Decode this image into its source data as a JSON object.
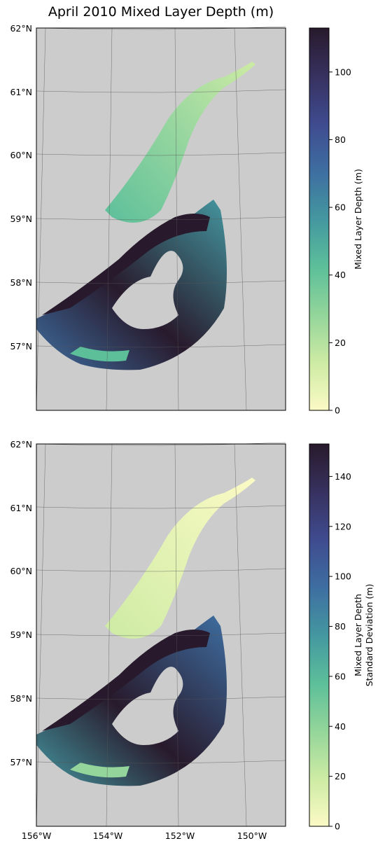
{
  "title": "April 2010 Mixed Layer Depth (m)",
  "latitude_labels": [
    "62°N",
    "61°N",
    "60°N",
    "59°N",
    "58°N",
    "57°N"
  ],
  "longitude_labels": [
    "156°W",
    "154°W",
    "152°W",
    "150°W"
  ],
  "panels": [
    {
      "name": "mean",
      "colorbar": {
        "label_lines": [
          "Mixed Layer Depth (m)"
        ],
        "ticks": [
          "0",
          "20",
          "40",
          "60",
          "80",
          "100"
        ],
        "tick_values": [
          0,
          20,
          40,
          60,
          80,
          100
        ],
        "vmin": 0,
        "vmax": 113
      }
    },
    {
      "name": "std",
      "colorbar": {
        "label_lines": [
          "Mixed Layer Depth",
          "Standard Deviation (m)"
        ],
        "ticks": [
          "0",
          "20",
          "40",
          "60",
          "80",
          "100",
          "120",
          "140"
        ],
        "tick_values": [
          0,
          20,
          40,
          60,
          80,
          100,
          120,
          140
        ],
        "vmin": 0,
        "vmax": 153
      }
    }
  ],
  "colors": {
    "land": "#cccccc",
    "frame": "#000000",
    "gridline": "#555555",
    "colormap": [
      "#fbfac5",
      "#cdeba4",
      "#93d59a",
      "#5cbf9a",
      "#4497a0",
      "#3e6ea1",
      "#3f4b8f",
      "#37315f",
      "#281a2c"
    ]
  }
}
